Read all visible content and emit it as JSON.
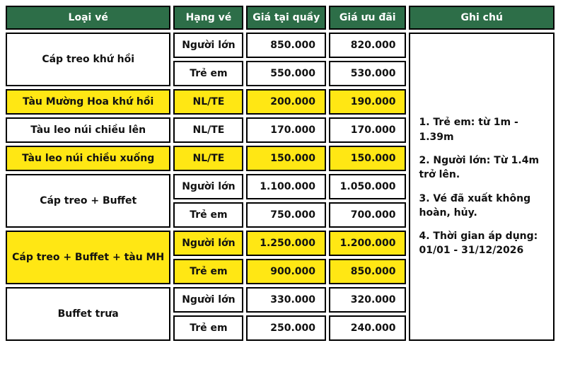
{
  "colors": {
    "header_bg": "#2D6E48",
    "header_text": "#FFFFFF",
    "highlight_bg": "#FFE714",
    "row_bg": "#FFFFFF",
    "border": "#000000",
    "body_text": "#111111"
  },
  "header": {
    "columns": [
      "Loại vé",
      "Hạng vé",
      "Giá tại quầy",
      "Giá ưu đãi",
      "Ghi chú"
    ]
  },
  "groups": [
    {
      "label": "Cáp treo khứ hồi",
      "highlight": false,
      "rows": [
        {
          "fare_class": "Người lớn",
          "counter_price": "850.000",
          "promo_price": "820.000"
        },
        {
          "fare_class": "Trẻ em",
          "counter_price": "550.000",
          "promo_price": "530.000"
        }
      ]
    },
    {
      "label": "Tàu Mường Hoa khứ hồi",
      "highlight": true,
      "rows": [
        {
          "fare_class": "NL/TE",
          "counter_price": "200.000",
          "promo_price": "190.000"
        }
      ]
    },
    {
      "label": "Tàu leo núi chiều lên",
      "highlight": false,
      "rows": [
        {
          "fare_class": "NL/TE",
          "counter_price": "170.000",
          "promo_price": "170.000"
        }
      ]
    },
    {
      "label": "Tàu leo núi chiều xuống",
      "highlight": true,
      "rows": [
        {
          "fare_class": "NL/TE",
          "counter_price": "150.000",
          "promo_price": "150.000"
        }
      ]
    },
    {
      "label": "Cáp treo + Buffet",
      "highlight": false,
      "rows": [
        {
          "fare_class": "Người lớn",
          "counter_price": "1.100.000",
          "promo_price": "1.050.000"
        },
        {
          "fare_class": "Trẻ em",
          "counter_price": "750.000",
          "promo_price": "700.000"
        }
      ]
    },
    {
      "label": "Cáp treo + Buffet + tàu MH",
      "highlight": true,
      "rows": [
        {
          "fare_class": "Người lớn",
          "counter_price": "1.250.000",
          "promo_price": "1.200.000"
        },
        {
          "fare_class": "Trẻ em",
          "counter_price": "900.000",
          "promo_price": "850.000"
        }
      ]
    },
    {
      "label": "Buffet trưa",
      "highlight": false,
      "rows": [
        {
          "fare_class": "Người lớn",
          "counter_price": "330.000",
          "promo_price": "320.000"
        },
        {
          "fare_class": "Trẻ em",
          "counter_price": "250.000",
          "promo_price": "240.000"
        }
      ]
    }
  ],
  "notes": [
    "1. Trẻ em: từ 1m - 1.39m",
    "2.  Người lớn: Từ 1.4m trở lên.",
    "3.  Vé đã xuất không hoàn, hủy.",
    "4. Thời gian áp dụng: 01/01 - 31/12/2026"
  ]
}
